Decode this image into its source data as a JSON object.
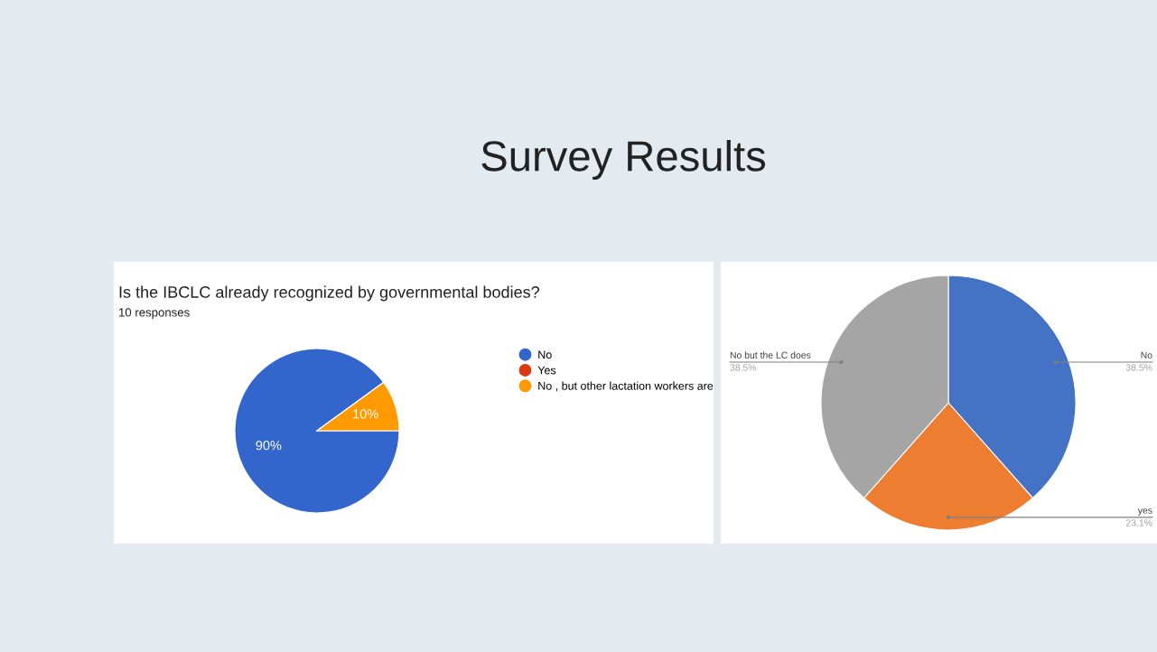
{
  "chart_data": [
    {
      "type": "pie",
      "title": "Is the IBCLC already recognized by governmental bodies?",
      "subtitle": "10 responses",
      "annotations": [
        "Survey Results"
      ],
      "categories": [
        "No",
        "Yes",
        "No , but other lactation workers are"
      ],
      "values": [
        90,
        0,
        10
      ],
      "colors": [
        "#3366cc",
        "#dc3912",
        "#ff9900"
      ],
      "value_labels": [
        "90%",
        null,
        "10%"
      ],
      "legend": "right"
    },
    {
      "type": "pie",
      "categories": [
        "No",
        "yes",
        "No but the LC does"
      ],
      "values": [
        38.5,
        23.1,
        38.5
      ],
      "colors": [
        "#4472c4",
        "#ed7d31",
        "#a5a5a5"
      ],
      "value_labels": [
        "38.5%",
        "23.1%",
        "38.5%"
      ]
    }
  ]
}
